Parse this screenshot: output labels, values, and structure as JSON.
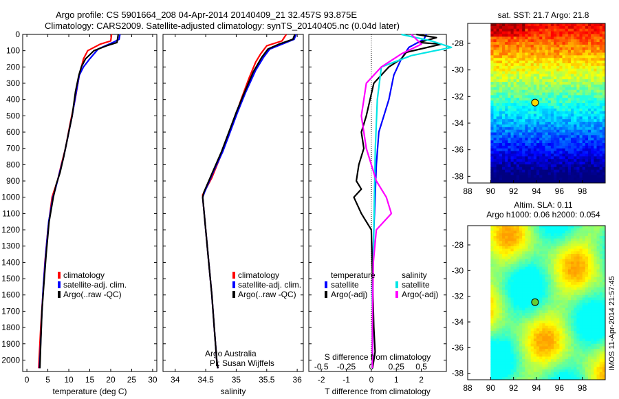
{
  "header": {
    "line1": "Argo profile: CS 5901664_208 04-Apr-2014 20140409_21 32.457S 93.875E",
    "line2": "Climatology: CARS2009. Satellite-adjusted climatology: synTS_20140405.nc (0.04d later)"
  },
  "credit": "Argo Australia",
  "pi": "PI: Susan Wijffels",
  "vertical_stamp": "IMOS 11-Apr-2014 21:57:45",
  "colors": {
    "climatology": "#ff0000",
    "satellite": "#0000ff",
    "argo": "#000000",
    "satellite_salinity": "#00e5e5",
    "argo_salinity": "#ff00ff"
  },
  "chart_data": [
    {
      "type": "line",
      "id": "temperature",
      "xlabel": "temperature (deg C)",
      "ylabel": "",
      "xlim": [
        -1,
        31
      ],
      "ylim": [
        2070,
        0
      ],
      "xticks": [
        0,
        5,
        10,
        15,
        20,
        25,
        30
      ],
      "yticks": [
        0,
        100,
        200,
        300,
        400,
        500,
        600,
        700,
        800,
        900,
        1000,
        1100,
        1200,
        1300,
        1400,
        1500,
        1600,
        1700,
        1800,
        1900,
        2000
      ],
      "legend": [
        "climatology",
        "satellite-adj. clim.",
        "Argo(..raw -QC)"
      ],
      "series": [
        {
          "name": "climatology",
          "color": "#ff0000",
          "points": [
            [
              20.2,
              0
            ],
            [
              20,
              40
            ],
            [
              17.5,
              60
            ],
            [
              14.5,
              100
            ],
            [
              13.5,
              150
            ],
            [
              12.5,
              250
            ],
            [
              11.5,
              400
            ],
            [
              10.3,
              550
            ],
            [
              9.2,
              700
            ],
            [
              8.2,
              800
            ],
            [
              7.3,
              900
            ],
            [
              6.5,
              960
            ],
            [
              6,
              1000
            ],
            [
              5,
              1200
            ],
            [
              4.3,
              1400
            ],
            [
              3.8,
              1600
            ],
            [
              3.3,
              1800
            ],
            [
              3,
              1950
            ],
            [
              2.8,
              2050
            ]
          ]
        },
        {
          "name": "satellite-adj. clim.",
          "color": "#0000ff",
          "points": [
            [
              22.2,
              0
            ],
            [
              22,
              30
            ],
            [
              20.5,
              50
            ],
            [
              17,
              90
            ],
            [
              15,
              150
            ],
            [
              13.5,
              200
            ],
            [
              12.5,
              250
            ],
            [
              11.8,
              350
            ],
            [
              10.8,
              500
            ],
            [
              9.6,
              650
            ],
            [
              8.8,
              750
            ],
            [
              7.8,
              850
            ],
            [
              6.8,
              950
            ],
            [
              6.2,
              1000
            ],
            [
              5.2,
              1150
            ],
            [
              4.5,
              1350
            ],
            [
              3.9,
              1550
            ],
            [
              3.5,
              1750
            ],
            [
              3.2,
              1950
            ],
            [
              3,
              2050
            ]
          ]
        },
        {
          "name": "Argo(..raw -QC)",
          "color": "#000000",
          "points": [
            [
              21.8,
              0
            ],
            [
              21.5,
              50
            ],
            [
              19,
              70
            ],
            [
              16,
              100
            ],
            [
              14,
              150
            ],
            [
              13,
              200
            ],
            [
              12.4,
              250
            ],
            [
              11.6,
              350
            ],
            [
              10.8,
              500
            ],
            [
              9.6,
              650
            ],
            [
              8.8,
              750
            ],
            [
              7.9,
              850
            ],
            [
              7,
              920
            ],
            [
              6.3,
              1000
            ],
            [
              5.3,
              1150
            ],
            [
              4.6,
              1350
            ],
            [
              4,
              1550
            ],
            [
              3.6,
              1700
            ],
            [
              3.3,
              1900
            ],
            [
              3.1,
              2050
            ]
          ]
        }
      ]
    },
    {
      "type": "line",
      "id": "salinity",
      "xlabel": "salinity",
      "ylabel": "",
      "xlim": [
        33.8,
        36.1
      ],
      "ylim": [
        2070,
        0
      ],
      "xticks": [
        34,
        34.5,
        35,
        35.5,
        36
      ],
      "xtick_labels": [
        "34",
        "34.5",
        "35",
        "35.5",
        "36"
      ],
      "legend": [
        "climatology",
        "satellite-adj. clim.",
        "Argo(..raw -QC)"
      ],
      "series": [
        {
          "name": "climatology",
          "color": "#ff0000",
          "points": [
            [
              35.82,
              0
            ],
            [
              35.75,
              40
            ],
            [
              35.5,
              70
            ],
            [
              35.4,
              120
            ],
            [
              35.32,
              170
            ],
            [
              35.22,
              260
            ],
            [
              35.08,
              400
            ],
            [
              34.97,
              520
            ],
            [
              34.86,
              640
            ],
            [
              34.73,
              760
            ],
            [
              34.6,
              880
            ],
            [
              34.45,
              985
            ],
            [
              34.45,
              1000
            ],
            [
              34.5,
              1200
            ],
            [
              34.55,
              1400
            ],
            [
              34.6,
              1600
            ],
            [
              34.64,
              1800
            ],
            [
              34.68,
              2000
            ],
            [
              34.7,
              2050
            ]
          ]
        },
        {
          "name": "satellite-adj. clim.",
          "color": "#0000ff",
          "points": [
            [
              35.98,
              0
            ],
            [
              35.95,
              30
            ],
            [
              35.75,
              60
            ],
            [
              35.55,
              90
            ],
            [
              35.45,
              140
            ],
            [
              35.32,
              220
            ],
            [
              35.15,
              360
            ],
            [
              35.02,
              480
            ],
            [
              34.9,
              600
            ],
            [
              34.78,
              720
            ],
            [
              34.63,
              840
            ],
            [
              34.48,
              970
            ],
            [
              34.45,
              1000
            ],
            [
              34.5,
              1200
            ],
            [
              34.55,
              1400
            ],
            [
              34.6,
              1600
            ],
            [
              34.64,
              1800
            ],
            [
              34.68,
              2000
            ],
            [
              34.7,
              2050
            ]
          ]
        },
        {
          "name": "Argo(..raw -QC)",
          "color": "#000000",
          "points": [
            [
              35.96,
              0
            ],
            [
              35.93,
              30
            ],
            [
              35.7,
              60
            ],
            [
              35.52,
              90
            ],
            [
              35.42,
              140
            ],
            [
              35.28,
              230
            ],
            [
              35.12,
              370
            ],
            [
              35,
              480
            ],
            [
              34.88,
              600
            ],
            [
              34.76,
              720
            ],
            [
              34.62,
              840
            ],
            [
              34.47,
              970
            ],
            [
              34.45,
              1000
            ],
            [
              34.5,
              1200
            ],
            [
              34.55,
              1400
            ],
            [
              34.6,
              1600
            ],
            [
              34.64,
              1800
            ],
            [
              34.68,
              2000
            ],
            [
              34.7,
              2050
            ]
          ]
        }
      ]
    },
    {
      "type": "line",
      "id": "difference",
      "xlabel": "T difference from climatology",
      "xlabel_top": "S difference from climatology",
      "ylabel": "",
      "xlim": [
        -2.5,
        3
      ],
      "ylim": [
        2070,
        0
      ],
      "xticks": [
        -2,
        -1,
        0,
        1,
        2
      ],
      "xticks_s": [
        -0.5,
        -0.25,
        0,
        0.25,
        0.5
      ],
      "xticks_s_labels": [
        "-0.5",
        "-0.25",
        "0",
        "0.25",
        "0.5"
      ],
      "legend_temperature_title": "temperature",
      "legend_salinity_title": "salinity",
      "legend_temperature": [
        "satellite",
        "Argo(-adj)"
      ],
      "legend_salinity": [
        "satellite",
        "Argo(-adj)"
      ],
      "series": [
        {
          "name": "temperature satellite",
          "color": "#0000ff",
          "points": [
            [
              2.2,
              0
            ],
            [
              2.1,
              30
            ],
            [
              1.5,
              80
            ],
            [
              1.2,
              150
            ],
            [
              0.9,
              250
            ],
            [
              0.7,
              400
            ],
            [
              0.5,
              500
            ],
            [
              0.3,
              600
            ],
            [
              0.2,
              800
            ],
            [
              0.15,
              1000
            ],
            [
              0.1,
              1200
            ],
            [
              0.05,
              1500
            ],
            [
              0.05,
              1800
            ],
            [
              0.05,
              2050
            ]
          ]
        },
        {
          "name": "temperature Argo(-adj)",
          "color": "#000000",
          "points": [
            [
              1.8,
              0
            ],
            [
              2.6,
              20
            ],
            [
              1.9,
              50
            ],
            [
              2.8,
              60
            ],
            [
              1.4,
              110
            ],
            [
              1.2,
              150
            ],
            [
              0.7,
              200
            ],
            [
              0.1,
              300
            ],
            [
              -0.2,
              500
            ],
            [
              -0.4,
              600
            ],
            [
              -0.3,
              700
            ],
            [
              -0.5,
              800
            ],
            [
              -0.6,
              900
            ],
            [
              -0.4,
              950
            ],
            [
              -0.7,
              1000
            ],
            [
              -0.4,
              1100
            ],
            [
              0,
              1200
            ],
            [
              0.05,
              1500
            ],
            [
              0.1,
              1800
            ],
            [
              0.15,
              1950
            ],
            [
              0.05,
              2050
            ]
          ]
        },
        {
          "name": "salinity satellite",
          "color": "#00e5e5",
          "points": [
            [
              0.3,
              0
            ],
            [
              0.6,
              40
            ],
            [
              0.8,
              80
            ],
            [
              0.4,
              130
            ],
            [
              0.1,
              200
            ],
            [
              0.06,
              400
            ],
            [
              0.04,
              700
            ],
            [
              0.03,
              1000
            ],
            [
              0.02,
              1400
            ],
            [
              0.01,
              1800
            ],
            [
              0.01,
              2050
            ]
          ]
        },
        {
          "name": "salinity Argo(-adj)",
          "color": "#ff00ff",
          "points": [
            [
              0.4,
              0
            ],
            [
              0.5,
              60
            ],
            [
              0.3,
              120
            ],
            [
              0.1,
              200
            ],
            [
              -0.05,
              300
            ],
            [
              -0.1,
              500
            ],
            [
              -0.05,
              700
            ],
            [
              0.05,
              900
            ],
            [
              0.15,
              1000
            ],
            [
              0.2,
              1100
            ],
            [
              0.05,
              1200
            ],
            [
              0.02,
              1400
            ],
            [
              0.01,
              1800
            ],
            [
              0.01,
              2050
            ]
          ]
        }
      ]
    },
    {
      "type": "heatmap",
      "id": "sst-map",
      "title": "sat. SST: 21.7 Argo: 21.8",
      "xlim": [
        88,
        100
      ],
      "ylim": [
        -38.5,
        -26.5
      ],
      "xticks": [
        88,
        90,
        92,
        94,
        96,
        98
      ],
      "yticks": [
        -28,
        -30,
        -32,
        -34,
        -36,
        -38
      ],
      "marker": {
        "lon": 93.875,
        "lat": -32.457,
        "color": "#ffd800"
      }
    },
    {
      "type": "heatmap",
      "id": "sla-map",
      "title": "Altim. SLA: 0.11",
      "subtitle": "Argo h1000: 0.06 h2000: 0.054",
      "xlim": [
        88,
        100
      ],
      "ylim": [
        -38.5,
        -26.5
      ],
      "xticks": [
        88,
        90,
        92,
        94,
        96,
        98
      ],
      "yticks": [
        -28,
        -30,
        -32,
        -34,
        -36,
        -38
      ],
      "marker": {
        "lon": 93.875,
        "lat": -32.457,
        "color": "#66cc33"
      }
    }
  ]
}
